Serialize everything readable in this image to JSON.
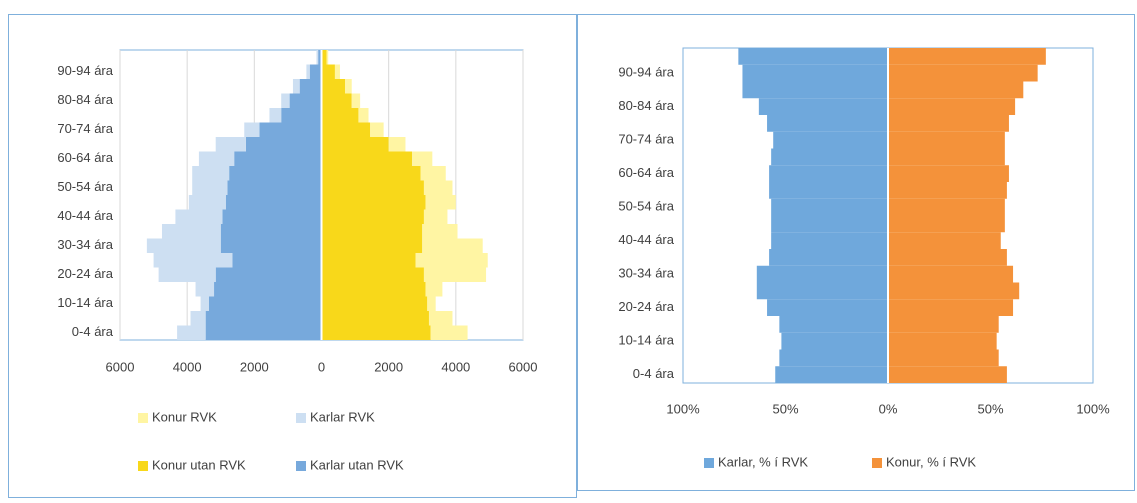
{
  "chart_data": [
    {
      "type": "bar",
      "orientation": "horizontal",
      "stacked": true,
      "grid": true,
      "categories": [
        "0-4 ára",
        null,
        "10-14 ára",
        null,
        "20-24 ára",
        null,
        "30-34 ára",
        null,
        "40-44 ára",
        null,
        "50-54 ára",
        null,
        "60-64 ára",
        null,
        "70-74 ára",
        null,
        "80-84 ára",
        null,
        "90-94 ára",
        null
      ],
      "series": [
        {
          "name": "Konur RVK",
          "color": "#fff5a3",
          "values": [
            1100,
            700,
            250,
            500,
            1850,
            2150,
            1800,
            1050,
            700,
            900,
            850,
            750,
            600,
            500,
            400,
            300,
            250,
            200,
            150,
            50
          ]
        },
        {
          "name": "Karlar RVK",
          "color": "#cddff2",
          "values": [
            -850,
            -450,
            -250,
            -550,
            -1700,
            -2350,
            -2200,
            -1750,
            -1400,
            -1100,
            -1050,
            -1100,
            -1050,
            -900,
            -450,
            -350,
            -250,
            -200,
            -100,
            -50
          ]
        },
        {
          "name": "Konur utan RVK",
          "color": "#f8d81a",
          "values": [
            3250,
            3200,
            3150,
            3100,
            3050,
            2800,
            3000,
            3000,
            3050,
            3100,
            3050,
            2950,
            2700,
            2000,
            1450,
            1100,
            900,
            700,
            400,
            150
          ]
        },
        {
          "name": "Karlar utan RVK",
          "color": "#77a9dc",
          "values": [
            -3450,
            -3450,
            -3350,
            -3200,
            -3150,
            -2650,
            -3000,
            -3000,
            -2950,
            -2850,
            -2800,
            -2750,
            -2600,
            -2250,
            -1850,
            -1200,
            -950,
            -650,
            -350,
            -100
          ]
        }
      ],
      "xlim": [
        -6000,
        6000
      ],
      "xticks": [
        {
          "value": -6000,
          "label": "6000"
        },
        {
          "value": -4000,
          "label": "4000"
        },
        {
          "value": -2000,
          "label": "2000"
        },
        0,
        2000,
        4000,
        6000
      ]
    },
    {
      "type": "bar",
      "orientation": "horizontal",
      "stacked": true,
      "grid": false,
      "categories": [
        "0-4 ára",
        null,
        "10-14 ára",
        null,
        "20-24 ára",
        null,
        "30-34 ára",
        null,
        "40-44 ára",
        null,
        "50-54 ára",
        null,
        "60-64 ára",
        null,
        "70-74 ára",
        null,
        "80-84 ára",
        null,
        "90-94 ára",
        null
      ],
      "series": [
        {
          "name": "Karlar, % í RVK",
          "color": "#6fa8dc",
          "values": [
            -55,
            -53,
            -52,
            -53,
            -59,
            -64,
            -64,
            -58,
            -57,
            -57,
            -57,
            -58,
            -58,
            -57,
            -56,
            -59,
            -63,
            -71,
            -71,
            -73
          ]
        },
        {
          "name": "Konur, % í RVK",
          "color": "#f4923a",
          "values": [
            58,
            54,
            53,
            54,
            61,
            64,
            61,
            58,
            55,
            57,
            57,
            58,
            59,
            57,
            57,
            59,
            62,
            66,
            73,
            77
          ]
        }
      ],
      "xlim": [
        -100,
        100
      ],
      "xticks": [
        {
          "value": -100,
          "label": "100%"
        },
        {
          "value": -50,
          "label": "50%"
        },
        {
          "value": 0,
          "label": "0%"
        },
        {
          "value": 50,
          "label": "50%"
        },
        {
          "value": 100,
          "label": "100%"
        }
      ]
    }
  ]
}
